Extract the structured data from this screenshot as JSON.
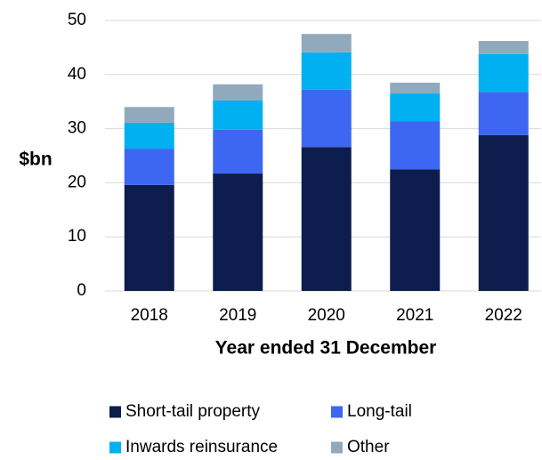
{
  "chart_data": {
    "type": "stacked_bar",
    "y_label": "$bn",
    "x_label": "Year ended 31 December",
    "categories": [
      "2018",
      "2019",
      "2020",
      "2021",
      "2022"
    ],
    "series": [
      {
        "name": "Short-tail property",
        "color": "#0c1d4e",
        "values": [
          19.6,
          21.7,
          26.6,
          22.5,
          28.8
        ]
      },
      {
        "name": "Long-tail",
        "color": "#3d66f2",
        "values": [
          6.7,
          8.1,
          10.6,
          8.9,
          8.0
        ]
      },
      {
        "name": "Inwards reinsurance",
        "color": "#00b0f0",
        "values": [
          4.8,
          5.4,
          6.9,
          5.1,
          7.0
        ]
      },
      {
        "name": "Other",
        "color": "#91a9bc",
        "values": [
          2.9,
          3.0,
          3.4,
          2.0,
          2.4
        ]
      }
    ],
    "ylim": [
      0,
      50
    ],
    "yticks": [
      0,
      10,
      20,
      30,
      40,
      50
    ],
    "grid": true
  }
}
